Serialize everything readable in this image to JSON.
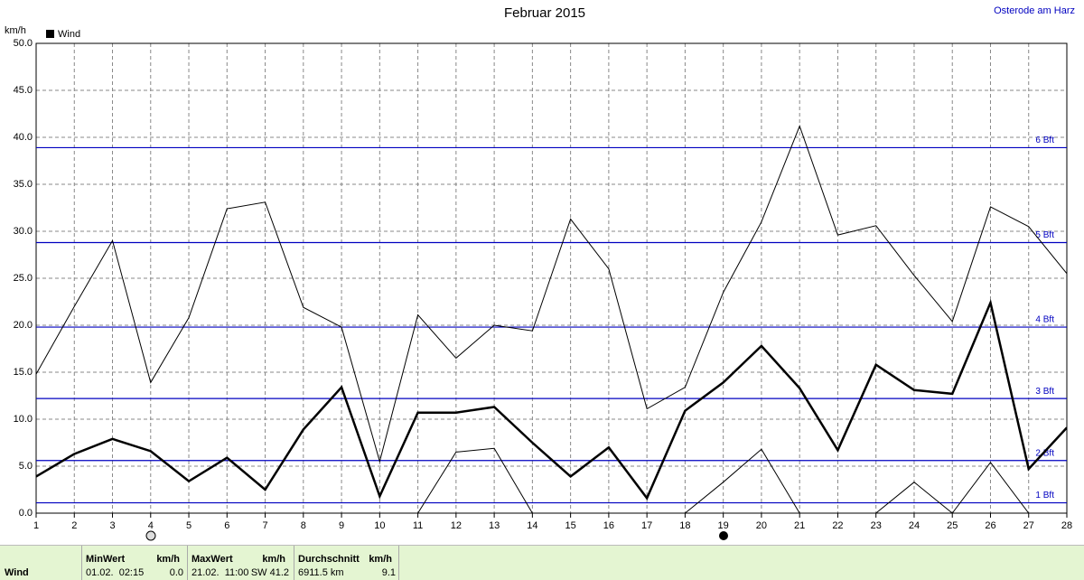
{
  "chart_data": {
    "type": "line",
    "title": "Februar 2015",
    "location": "Osterode am Harz",
    "y_label": "km/h",
    "x": [
      1,
      2,
      3,
      4,
      5,
      6,
      7,
      8,
      9,
      10,
      11,
      12,
      13,
      14,
      15,
      16,
      17,
      18,
      19,
      20,
      21,
      22,
      23,
      24,
      25,
      26,
      27,
      28
    ],
    "series": [
      {
        "name": "Wind",
        "color": "#000000",
        "width": 2.5,
        "values": [
          3.9,
          6.3,
          7.9,
          6.6,
          3.4,
          5.9,
          2.5,
          8.9,
          13.4,
          1.8,
          10.7,
          10.7,
          11.3,
          7.5,
          3.9,
          7.0,
          1.6,
          10.9,
          13.9,
          17.8,
          13.3,
          6.7,
          15.8,
          13.1,
          12.7,
          22.4,
          4.7,
          9.1
        ]
      },
      {
        "color": "#000000",
        "width": 1,
        "values": [
          14.8,
          22.0,
          29.0,
          13.9,
          20.8,
          32.4,
          33.1,
          21.9,
          19.8,
          5.5,
          21.1,
          16.5,
          20.0,
          19.4,
          31.3,
          26.0,
          11.1,
          13.4,
          23.5,
          31.0,
          41.2,
          29.6,
          30.6,
          25.3,
          20.4,
          32.6,
          30.5,
          25.5
        ]
      },
      {
        "color": "#000000",
        "width": 1,
        "values": [
          0,
          0,
          0,
          0,
          0,
          0,
          0,
          0,
          0,
          0,
          0,
          6.5,
          6.9,
          0,
          0,
          0,
          0,
          0,
          3.3,
          6.8,
          0,
          0,
          0,
          3.3,
          0,
          5.4,
          0,
          0
        ]
      }
    ],
    "reference_lines": [
      {
        "value": 1.1,
        "label": "1 Bft"
      },
      {
        "value": 5.6,
        "label": "2 Bft"
      },
      {
        "value": 12.2,
        "label": "3 Bft"
      },
      {
        "value": 19.8,
        "label": "4 Bft"
      },
      {
        "value": 28.8,
        "label": "5 Bft"
      },
      {
        "value": 38.9,
        "label": "6 Bft"
      }
    ],
    "reference_color": "#0000c0",
    "xlim": [
      1,
      28
    ],
    "xticks": [
      1,
      2,
      3,
      4,
      5,
      6,
      7,
      8,
      9,
      10,
      11,
      12,
      13,
      14,
      15,
      16,
      17,
      18,
      19,
      20,
      21,
      22,
      23,
      24,
      25,
      26,
      27,
      28
    ],
    "ylim": [
      0,
      50
    ],
    "yticks": [
      {
        "value": 0,
        "label": "0.0"
      },
      {
        "value": 5,
        "label": "5.0"
      },
      {
        "value": 10,
        "label": "10.0"
      },
      {
        "value": 15,
        "label": "15.0"
      },
      {
        "value": 20,
        "label": "20.0"
      },
      {
        "value": 25,
        "label": "25.0"
      },
      {
        "value": 30,
        "label": "30.0"
      },
      {
        "value": 35,
        "label": "35.0"
      },
      {
        "value": 40,
        "label": "40.0"
      },
      {
        "value": 45,
        "label": "45.0"
      },
      {
        "value": 50,
        "label": "50.0"
      }
    ],
    "grid": true
  },
  "footer": {
    "row_label": "Wind",
    "columns": [
      {
        "header": "MinWert",
        "unit": "km/h",
        "time": "01.02.  02:15",
        "value": "0.0"
      },
      {
        "header": "MaxWert",
        "unit": "km/h",
        "time": "21.02.  11:00",
        "value": "SW 41.2"
      },
      {
        "header": "Durchschnitt",
        "unit": "km/h",
        "time": "6911.5 km",
        "value": "9.1"
      }
    ]
  }
}
